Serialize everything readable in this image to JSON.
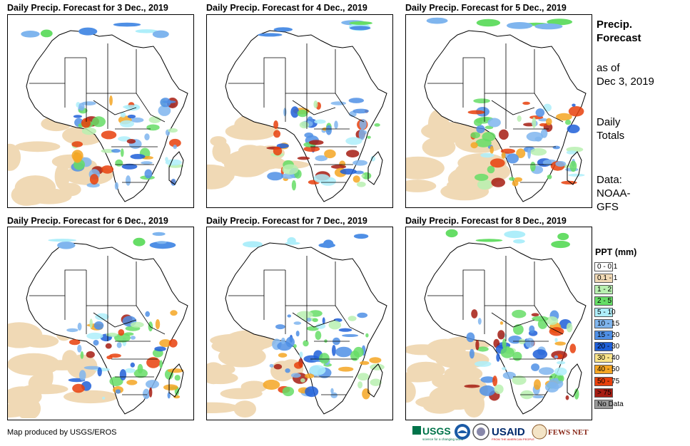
{
  "panels": [
    {
      "title": "Daily Precip. Forecast for 3 Dec., 2019"
    },
    {
      "title": "Daily Precip. Forecast for 4 Dec., 2019"
    },
    {
      "title": "Daily Precip. Forecast for 5 Dec., 2019"
    },
    {
      "title": "Daily Precip. Forecast for 6 Dec., 2019"
    },
    {
      "title": "Daily Precip. Forecast for 7 Dec., 2019"
    },
    {
      "title": "Daily Precip. Forecast for 8 Dec., 2019"
    }
  ],
  "sidebar": {
    "title_line1": "Precip.",
    "title_line2": "Forecast",
    "asof_line1": "as of",
    "asof_line2": "Dec 3, 2019",
    "totals_line1": "Daily",
    "totals_line2": "Totals",
    "data_line1": "Data:",
    "data_line2": "NOAA-",
    "data_line3": "GFS"
  },
  "legend": {
    "title": "PPT (mm)",
    "items": [
      {
        "label": "0 - 0.1",
        "color": "#ffffff"
      },
      {
        "label": "0.1 - 1",
        "color": "#f0d9b5"
      },
      {
        "label": "1 - 2",
        "color": "#b8f0b0"
      },
      {
        "label": "2 - 5",
        "color": "#66dd66"
      },
      {
        "label": "5 - 10",
        "color": "#aeeefa"
      },
      {
        "label": "10 - 15",
        "color": "#7fb5ee"
      },
      {
        "label": "15 - 20",
        "color": "#4f8fe5"
      },
      {
        "label": "20 - 30",
        "color": "#1f5fd8"
      },
      {
        "label": "30 - 40",
        "color": "#fbe58a"
      },
      {
        "label": "40 - 50",
        "color": "#f5a623"
      },
      {
        "label": "50 - 75",
        "color": "#e8400c"
      },
      {
        "label": "> 75",
        "color": "#a61c12"
      },
      {
        "label": "No Data",
        "color": "#999999"
      }
    ]
  },
  "credit": "Map produced by USGS/EROS",
  "logos": {
    "usgs": "USGS",
    "usgs_tagline": "science for a changing world",
    "usaid": "USAID",
    "usaid_tagline": "FROM THE AMERICAN PEOPLE",
    "fews": "FEWS NET"
  }
}
